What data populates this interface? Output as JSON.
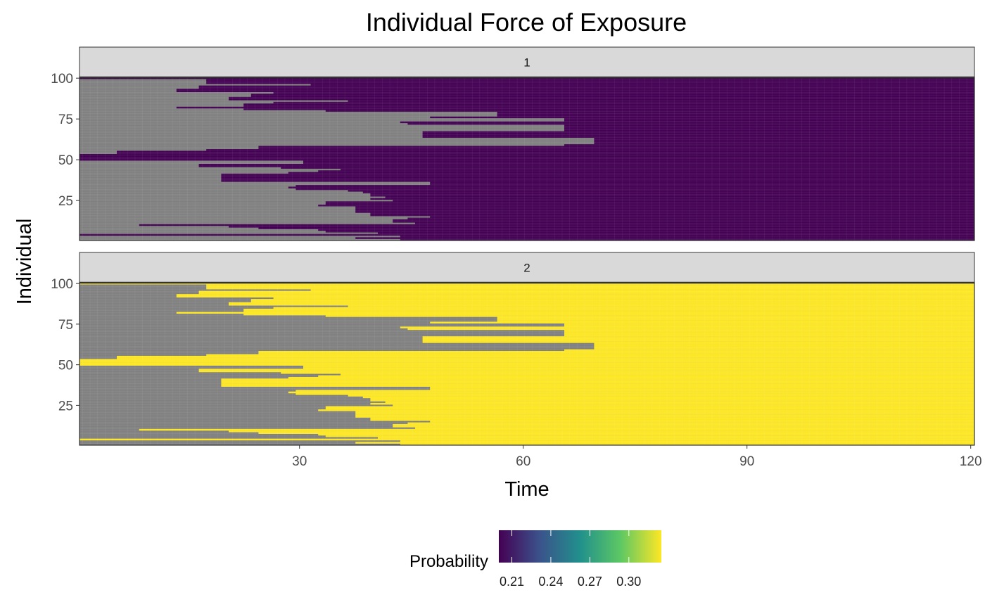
{
  "chart_data": {
    "type": "heatmap",
    "title": "Individual Force of Exposure",
    "xlabel": "Time",
    "ylabel": "Individual",
    "xlim": [
      1,
      120
    ],
    "ylim": [
      1,
      100
    ],
    "x_ticks": [
      "30",
      "60",
      "90",
      "120"
    ],
    "x_tick_values": [
      30,
      60,
      90,
      120
    ],
    "y_ticks": [
      "25",
      "50",
      "75",
      "100"
    ],
    "y_tick_values": [
      25,
      50,
      75,
      100
    ],
    "na_color": "#808080",
    "grid": "on",
    "facets": [
      {
        "strip_label": "1",
        "fill_color": "#440154",
        "description_value": 0.2,
        "infection_start_by_individual_from_top": [
          1,
          18,
          18,
          18,
          32,
          17,
          17,
          14,
          14,
          27,
          24,
          24,
          21,
          21,
          37,
          27,
          23,
          23,
          14,
          23,
          34,
          57,
          57,
          57,
          48,
          66,
          66,
          44,
          45,
          66,
          66,
          66,
          66,
          47,
          47,
          47,
          47,
          70,
          70,
          70,
          70,
          66,
          25,
          25,
          18,
          6,
          6,
          1,
          1,
          1,
          1,
          31,
          31,
          17,
          17,
          28,
          36,
          33,
          29,
          20,
          20,
          20,
          20,
          20,
          48,
          48,
          30,
          29,
          30,
          37,
          39,
          40,
          40,
          42,
          40,
          43,
          34,
          34,
          33,
          38,
          38,
          38,
          38,
          40,
          40,
          48,
          45,
          43,
          43,
          46,
          9,
          21,
          25,
          33,
          34,
          41,
          1,
          44,
          38,
          44
        ]
      },
      {
        "strip_label": "2",
        "fill_color": "#FDE725",
        "description_value": 0.32,
        "infection_start_by_individual_from_top": [
          1,
          18,
          18,
          18,
          32,
          17,
          17,
          14,
          14,
          27,
          24,
          24,
          21,
          21,
          37,
          27,
          23,
          23,
          14,
          23,
          34,
          57,
          57,
          57,
          48,
          66,
          66,
          44,
          45,
          66,
          66,
          66,
          66,
          47,
          47,
          47,
          47,
          70,
          70,
          70,
          70,
          66,
          25,
          25,
          18,
          6,
          6,
          1,
          1,
          1,
          1,
          31,
          31,
          17,
          17,
          28,
          36,
          33,
          29,
          20,
          20,
          20,
          20,
          20,
          48,
          48,
          30,
          29,
          30,
          37,
          39,
          40,
          40,
          42,
          40,
          43,
          34,
          34,
          33,
          38,
          38,
          38,
          38,
          40,
          40,
          48,
          45,
          43,
          43,
          46,
          9,
          21,
          25,
          33,
          34,
          41,
          1,
          44,
          38,
          44
        ]
      }
    ],
    "legend": {
      "title": "Probability",
      "placement": "bottom",
      "ticks": [
        "0.21",
        "0.24",
        "0.27",
        "0.30"
      ],
      "tick_values": [
        0.21,
        0.24,
        0.27,
        0.3
      ],
      "range": [
        0.2,
        0.325
      ],
      "colors": [
        "#440154",
        "#3B528B",
        "#21908C",
        "#5DC863",
        "#FDE725"
      ]
    }
  }
}
